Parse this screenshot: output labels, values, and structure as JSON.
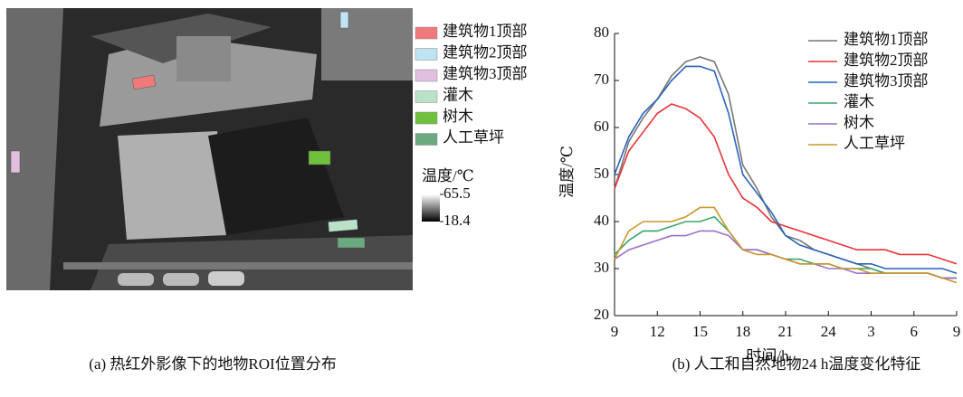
{
  "image_panel": {
    "legend": [
      {
        "label": "建筑物1顶部",
        "color": "#f07a7a"
      },
      {
        "label": "建筑物2顶部",
        "color": "#bfe3f2"
      },
      {
        "label": "建筑物3顶部",
        "color": "#e1bfe0"
      },
      {
        "label": "灌木",
        "color": "#b9e2c9"
      },
      {
        "label": "树木",
        "color": "#6fc03c"
      },
      {
        "label": "人工草坪",
        "color": "#6ba97e"
      }
    ],
    "colorbar": {
      "title": "温度/℃",
      "max": 65.5,
      "min": 18.4
    },
    "caption": "(a) 热红外影像下的地物ROI位置分布"
  },
  "chart_data": {
    "type": "line",
    "caption": "(b) 人工和自然地物24 h温度变化特征",
    "xlabel": "时间/h",
    "ylabel": "温度/℃",
    "x": [
      9,
      10,
      11,
      12,
      13,
      14,
      15,
      16,
      17,
      18,
      19,
      20,
      21,
      22,
      23,
      24,
      25,
      26,
      27,
      28,
      29,
      30,
      31,
      32,
      33
    ],
    "xlim": [
      9,
      33
    ],
    "ylim": [
      20,
      80
    ],
    "xticks": [
      9,
      12,
      15,
      18,
      21,
      24,
      {
        "value": 27,
        "label": "3"
      },
      {
        "value": 30,
        "label": "6"
      },
      {
        "value": 33,
        "label": "9"
      }
    ],
    "yticks": [
      20,
      30,
      40,
      50,
      60,
      70,
      80
    ],
    "series": [
      {
        "name": "建筑物1顶部",
        "color": "#777777",
        "values": [
          47,
          57,
          62,
          66,
          71,
          74,
          75,
          74,
          67,
          52,
          47,
          41,
          37,
          36,
          34,
          33,
          32,
          31,
          30,
          29,
          29,
          29,
          29,
          28,
          28
        ]
      },
      {
        "name": "建筑物2顶部",
        "color": "#e8333a",
        "values": [
          47,
          55,
          59,
          63,
          65,
          64,
          62,
          58,
          50,
          45,
          43,
          40,
          39,
          38,
          37,
          36,
          35,
          34,
          34,
          34,
          33,
          33,
          33,
          32,
          31
        ]
      },
      {
        "name": "建筑物3顶部",
        "color": "#2a63b8",
        "values": [
          50,
          58,
          63,
          66,
          70,
          73,
          73,
          72,
          63,
          50,
          46,
          42,
          37,
          35,
          34,
          33,
          32,
          31,
          31,
          30,
          30,
          30,
          30,
          30,
          29
        ]
      },
      {
        "name": "灌木",
        "color": "#3aa56b",
        "values": [
          33,
          36,
          38,
          38,
          39,
          40,
          40,
          41,
          38,
          34,
          34,
          33,
          32,
          32,
          31,
          31,
          30,
          30,
          30,
          29,
          29,
          29,
          29,
          28,
          28
        ]
      },
      {
        "name": "树木",
        "color": "#9b6fc9",
        "values": [
          32,
          34,
          35,
          36,
          37,
          37,
          38,
          38,
          37,
          34,
          34,
          33,
          32,
          31,
          31,
          30,
          30,
          29,
          29,
          29,
          29,
          29,
          29,
          28,
          28
        ]
      },
      {
        "name": "人工草坪",
        "color": "#c9972c",
        "values": [
          32,
          38,
          40,
          40,
          40,
          41,
          43,
          43,
          38,
          34,
          33,
          33,
          32,
          31,
          31,
          31,
          30,
          30,
          29,
          29,
          29,
          29,
          29,
          28,
          27
        ]
      }
    ]
  }
}
